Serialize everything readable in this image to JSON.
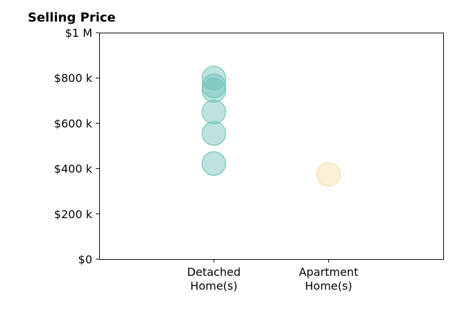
{
  "chart_data": {
    "type": "scatter",
    "title": "Selling Price",
    "xlabel": "",
    "ylabel": "",
    "categories": [
      "Detached\nHome(s)",
      "Apartment\nHome(s)"
    ],
    "x_tick_lines": [
      [
        "Detached",
        "Home(s)"
      ],
      [
        "Apartment",
        "Home(s)"
      ]
    ],
    "ylim": [
      0,
      1000000
    ],
    "y_ticks": [
      0,
      200000,
      400000,
      600000,
      800000,
      1000000
    ],
    "y_tick_labels": [
      "$0",
      "$200 k",
      "$400 k",
      "$600 k",
      "$800 k",
      "$1 M"
    ],
    "grid": false,
    "series": [
      {
        "category": "Detached\nHome(s)",
        "color": "#6fc2b8",
        "values": [
          800000,
          765000,
          745000,
          650000,
          555000,
          422000
        ]
      },
      {
        "category": "Apartment\nHome(s)",
        "color": "#f5dea8",
        "values": [
          374000
        ]
      }
    ]
  }
}
